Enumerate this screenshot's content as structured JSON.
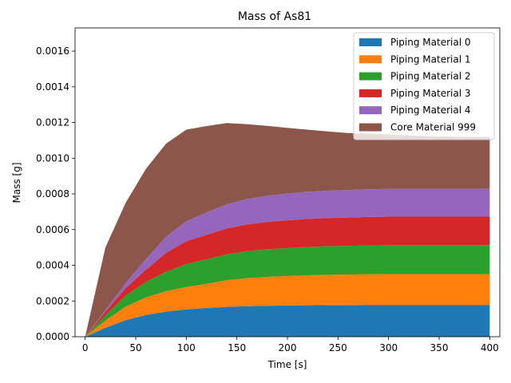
{
  "chart_data": {
    "type": "area",
    "stacked": true,
    "title": "Mass of As81",
    "xlabel": "Time [s]",
    "ylabel": "Mass [g]",
    "xlim": [
      -10,
      410
    ],
    "ylim": [
      0,
      0.00173
    ],
    "xticks": [
      0,
      50,
      100,
      150,
      200,
      250,
      300,
      350,
      400
    ],
    "xtick_labels": [
      "0",
      "50",
      "100",
      "150",
      "200",
      "250",
      "300",
      "350",
      "400"
    ],
    "yticks": [
      0,
      0.0002,
      0.0004,
      0.0006,
      0.0008,
      0.001,
      0.0012,
      0.0014,
      0.0016
    ],
    "ytick_labels": [
      "0.0000",
      "0.0002",
      "0.0004",
      "0.0006",
      "0.0008",
      "0.0010",
      "0.0012",
      "0.0014",
      "0.0016"
    ],
    "grid": false,
    "legend_position": "top-right",
    "x": [
      0,
      20,
      40,
      60,
      80,
      100,
      120,
      140,
      160,
      180,
      200,
      220,
      240,
      260,
      280,
      300,
      320,
      340,
      360,
      380,
      400
    ],
    "series": [
      {
        "name": "Piping Material 0",
        "color": "#1f77b4",
        "values": [
          0,
          5e-05,
          9.3e-05,
          0.000122,
          0.000141,
          0.000153,
          0.000161,
          0.000167,
          0.000171,
          0.000173,
          0.000175,
          0.000176,
          0.000177,
          0.000177,
          0.000178,
          0.000178,
          0.000178,
          0.000178,
          0.000178,
          0.000178,
          0.000178
        ]
      },
      {
        "name": "Piping Material 1",
        "color": "#ff7f0e",
        "values": [
          0,
          4e-05,
          7.5e-05,
          9.8e-05,
          0.000114,
          0.000126,
          0.000135,
          0.000149,
          0.000157,
          0.000162,
          0.000165,
          0.000168,
          0.00017,
          0.000171,
          0.000172,
          0.000173,
          0.000173,
          0.000173,
          0.000173,
          0.000173,
          0.000173
        ]
      },
      {
        "name": "Piping Material 2",
        "color": "#2ca02c",
        "values": [
          0,
          3e-05,
          6.2e-05,
          8.7e-05,
          0.000108,
          0.000128,
          0.000137,
          0.000146,
          0.000151,
          0.000155,
          0.000157,
          0.000159,
          0.00016,
          0.000161,
          0.000161,
          0.000162,
          0.000162,
          0.000162,
          0.000162,
          0.000162,
          0.000162
        ]
      },
      {
        "name": "Piping Material 3",
        "color": "#d62728",
        "values": [
          0,
          2e-05,
          4.2e-05,
          6.8e-05,
          0.000107,
          0.000128,
          0.000138,
          0.000145,
          0.00015,
          0.000153,
          0.000155,
          0.000157,
          0.000158,
          0.000159,
          0.00016,
          0.00016,
          0.00016,
          0.00016,
          0.00016,
          0.00016,
          0.00016
        ]
      },
      {
        "name": "Piping Material 4",
        "color": "#9467bd",
        "values": [
          0,
          1e-05,
          2.8e-05,
          6e-05,
          9e-05,
          0.000112,
          0.000125,
          0.000135,
          0.000142,
          0.000147,
          0.00015,
          0.000152,
          0.000153,
          0.000154,
          0.000155,
          0.000155,
          0.000155,
          0.000155,
          0.000155,
          0.000155,
          0.000155
        ]
      },
      {
        "name": "Core Material 999",
        "color": "#8c564b",
        "values": [
          0,
          0.00035,
          0.00045,
          0.000505,
          0.000522,
          0.000513,
          0.000484,
          0.000455,
          0.00042,
          0.000391,
          0.000368,
          0.000348,
          0.000332,
          0.000319,
          0.000312,
          0.000305,
          0.0003,
          0.000294,
          0.000293,
          0.000292,
          0.000292
        ]
      }
    ]
  }
}
